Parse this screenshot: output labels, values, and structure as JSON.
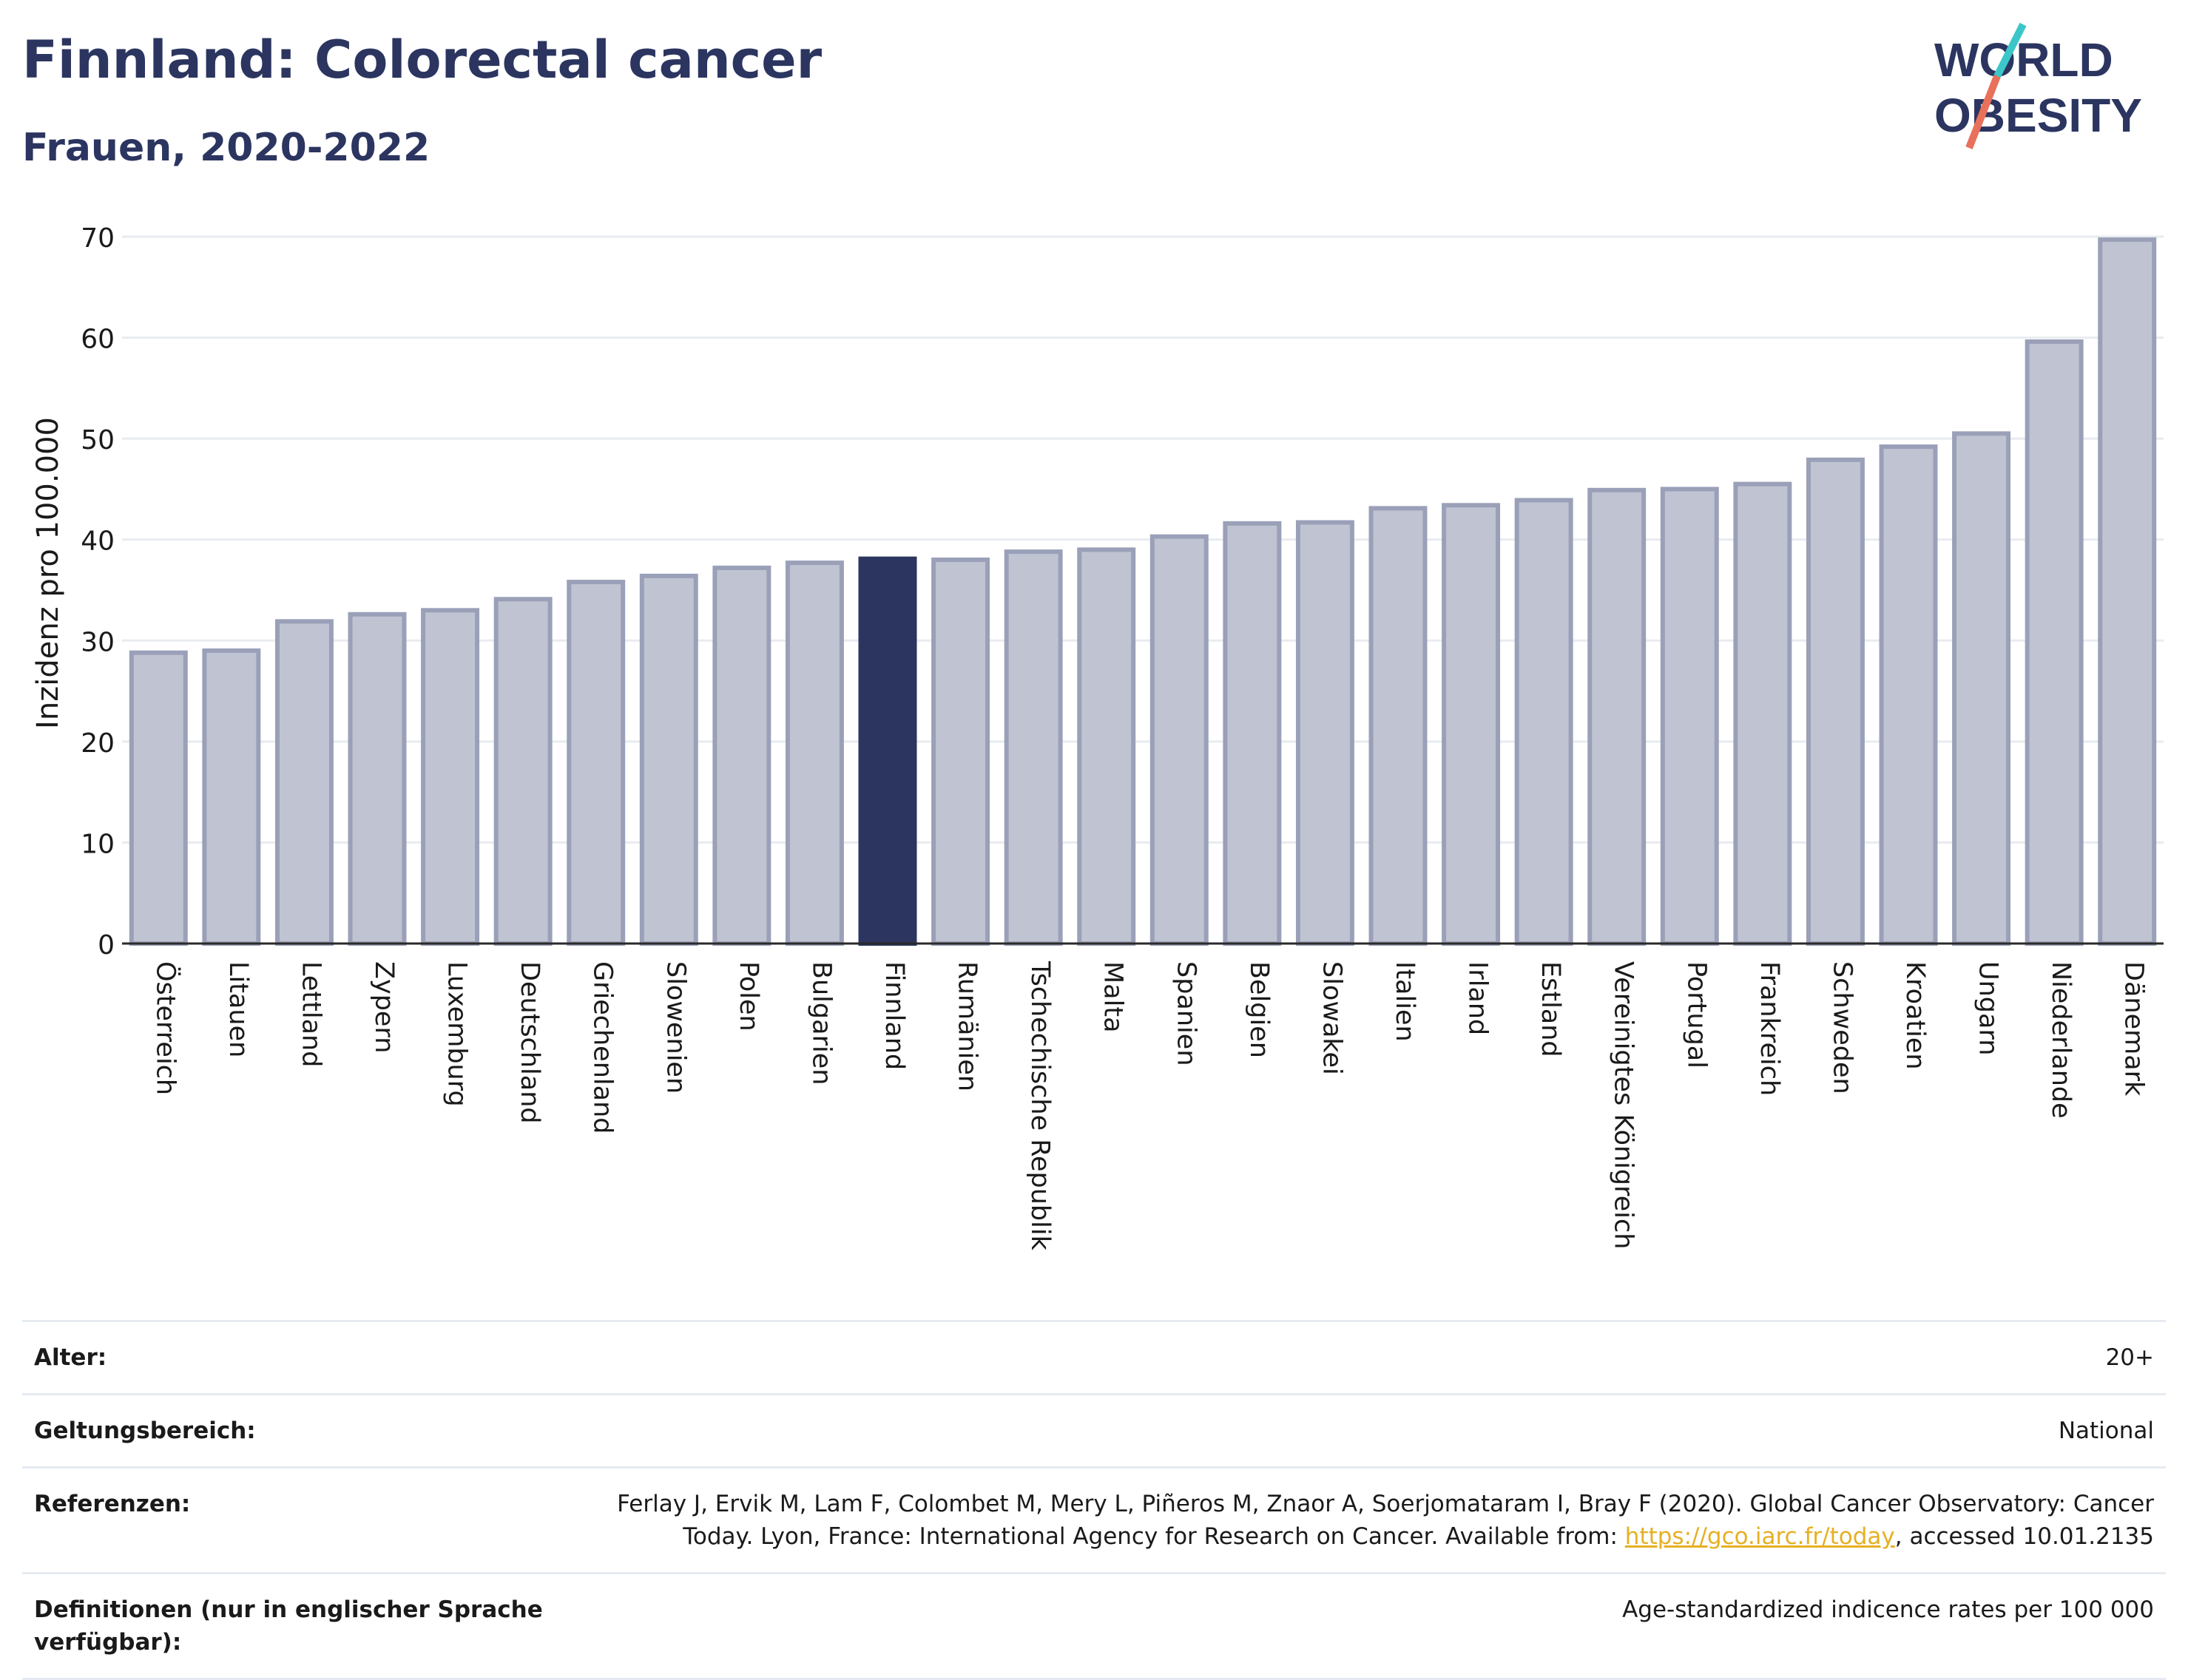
{
  "title": "Finnland: Colorectal cancer",
  "subtitle": "Frauen, 2020-2022",
  "logo": {
    "line1": "WORLD",
    "line2": "OBESITY"
  },
  "colors": {
    "highlight": "#2b3560",
    "bar": "#c0c3d1",
    "bar_stroke": "#9aa0b8",
    "link": "#e5b023"
  },
  "chart_data": {
    "type": "bar",
    "ylabel": "Inzidenz pro 100.000",
    "ylim": [
      0,
      70
    ],
    "yticks": [
      0,
      10,
      20,
      30,
      40,
      50,
      60,
      70
    ],
    "grid": true,
    "highlight": "Finnland",
    "categories": [
      "Österreich",
      "Litauen",
      "Lettland",
      "Zypern",
      "Luxemburg",
      "Deutschland",
      "Griechenland",
      "Slowenien",
      "Polen",
      "Bulgarien",
      "Finnland",
      "Rumänien",
      "Tschechische Republik",
      "Malta",
      "Spanien",
      "Belgien",
      "Slowakei",
      "Italien",
      "Irland",
      "Estland",
      "Vereinigtes Königreich",
      "Portugal",
      "Frankreich",
      "Schweden",
      "Kroatien",
      "Ungarn",
      "Niederlande",
      "Dänemark"
    ],
    "values": [
      28.8,
      29.0,
      31.9,
      32.6,
      33.0,
      34.1,
      35.8,
      36.4,
      37.2,
      37.7,
      38.1,
      38.0,
      38.8,
      39.0,
      40.3,
      41.6,
      41.7,
      43.1,
      43.4,
      43.9,
      44.9,
      45.0,
      45.5,
      47.9,
      49.2,
      50.5,
      59.6,
      69.7
    ]
  },
  "meta": [
    {
      "key": "Alter:",
      "value": "20+"
    },
    {
      "key": "Geltungsbereich:",
      "value": "National"
    },
    {
      "key": "Referenzen:",
      "value_pre": "Ferlay J, Ervik M, Lam F, Colombet M, Mery L, Piñeros M, Znaor A, Soerjomataram I, Bray F (2020). Global Cancer Observatory: Cancer Today. Lyon, France: International Agency for Research on Cancer. Available from: ",
      "link": "https://gco.iarc.fr/today",
      "value_post": ", accessed 10.01.2135"
    },
    {
      "key": "Definitionen (nur in englischer Sprache verfügbar):",
      "value": "Age-standardized indicence rates per 100 000"
    }
  ]
}
